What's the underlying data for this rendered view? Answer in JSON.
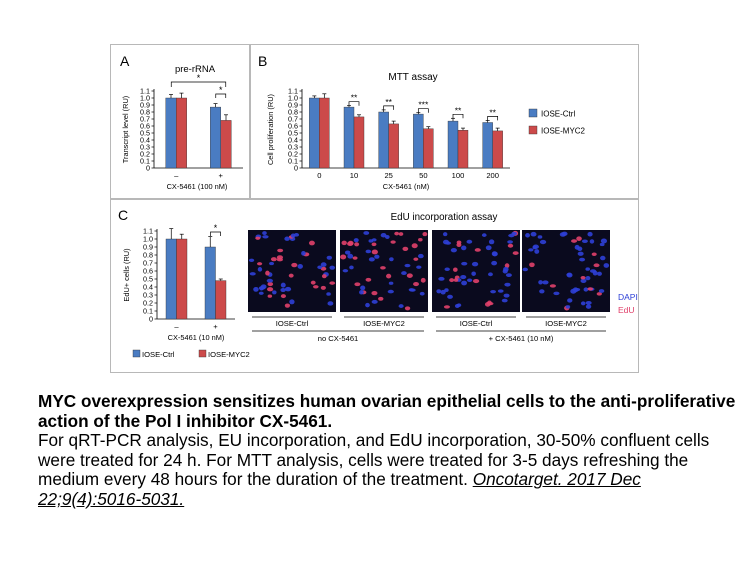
{
  "figure": {
    "panel_a": {
      "letter": "A",
      "chart_title": "pre-rRNA",
      "ylabel": "Transcript level (RU)",
      "xlabel": "CX-5461 (100 nM)",
      "ticks": [
        "0",
        "0.1",
        "0.2",
        "0.3",
        "0.4",
        "0.5",
        "0.6",
        "0.7",
        "0.8",
        "0.9",
        "1.0",
        "1.1"
      ],
      "categories": [
        "–",
        "+"
      ],
      "star_bracket_between": "*",
      "star_bracket_within": "*"
    },
    "panel_b": {
      "letter": "B",
      "chart_title": "MTT assay",
      "ylabel": "Cell proliferation (RU)",
      "xlabel": "CX-5461 (nM)",
      "ticks": [
        "0",
        "0.1",
        "0.2",
        "0.3",
        "0.4",
        "0.5",
        "0.6",
        "0.7",
        "0.8",
        "0.9",
        "1.0",
        "1.1"
      ],
      "categories": [
        "0",
        "10",
        "25",
        "50",
        "100",
        "200"
      ],
      "stars": [
        "**",
        "**",
        "***",
        "**",
        "**"
      ],
      "legend": [
        "IOSE-Ctrl",
        "IOSE-MYC2"
      ]
    },
    "panel_c": {
      "letter": "C",
      "assay_title": "EdU incorporation assay",
      "ylabel": "EdU+ cells (RU)",
      "xlabel": "CX-5461 (10 nM)",
      "ticks": [
        "0",
        "0.1",
        "0.2",
        "0.3",
        "0.4",
        "0.5",
        "0.6",
        "0.7",
        "0.8",
        "0.9",
        "1.0",
        "1.1"
      ],
      "categories": [
        "–",
        "+"
      ],
      "star": "*",
      "legend": [
        "IOSE-Ctrl",
        "IOSE-MYC2"
      ],
      "image_labels": [
        "IOSE-Ctrl",
        "IOSE-MYC2",
        "IOSE-Ctrl",
        "IOSE-MYC2"
      ],
      "group_labels": [
        "no CX-5461",
        "+ CX-5461 (10 nM)"
      ],
      "stain_labels": [
        "DAPI",
        "EdU"
      ]
    }
  },
  "colors": {
    "ctrl": "#4a7cc2",
    "myc2": "#cc4a4a",
    "dapi": "#2d3fd6",
    "edu": "#e0406a",
    "micro_bg": "#0a0a1e"
  },
  "caption": {
    "title": "MYC overexpression sensitizes human ovarian epithelial cells to the anti-proliferative action of the Pol I inhibitor CX-5461.",
    "body": "For qRT-PCR analysis, EU incorporation, and EdU incorporation, 30-50% confluent cells were treated for 24 h. For MTT analysis, cells were treated for 3-5 days refreshing the medium every 48 hours for the duration of the treatment.",
    "citation": "Oncotarget. 2017 Dec 22;9(4):5016-5031."
  },
  "chart_data": [
    {
      "type": "bar",
      "title": "pre-rRNA",
      "xlabel": "CX-5461 (100 nM)",
      "ylabel": "Transcript level (RU)",
      "ylim": [
        0,
        1.1
      ],
      "categories": [
        "–",
        "+"
      ],
      "series": [
        {
          "name": "IOSE-Ctrl",
          "values": [
            1.0,
            0.87
          ],
          "errors": [
            0.05,
            0.05
          ]
        },
        {
          "name": "IOSE-MYC2",
          "values": [
            1.0,
            0.68
          ],
          "errors": [
            0.07,
            0.08
          ]
        }
      ],
      "legend": "none"
    },
    {
      "type": "bar",
      "title": "MTT assay",
      "xlabel": "CX-5461 (nM)",
      "ylabel": "Cell proliferation (RU)",
      "ylim": [
        0,
        1.1
      ],
      "categories": [
        "0",
        "10",
        "25",
        "50",
        "100",
        "200"
      ],
      "series": [
        {
          "name": "IOSE-Ctrl",
          "values": [
            1.0,
            0.87,
            0.8,
            0.77,
            0.67,
            0.65
          ],
          "errors": [
            0.03,
            0.02,
            0.03,
            0.02,
            0.04,
            0.03
          ]
        },
        {
          "name": "IOSE-MYC2",
          "values": [
            1.0,
            0.73,
            0.63,
            0.56,
            0.54,
            0.53
          ],
          "errors": [
            0.06,
            0.03,
            0.04,
            0.03,
            0.03,
            0.04
          ]
        }
      ],
      "legend": "right"
    },
    {
      "type": "bar",
      "title": "",
      "xlabel": "CX-5461 (10 nM)",
      "ylabel": "EdU+ cells (RU)",
      "ylim": [
        0,
        1.1
      ],
      "categories": [
        "–",
        "+"
      ],
      "series": [
        {
          "name": "IOSE-Ctrl",
          "values": [
            1.0,
            0.9
          ],
          "errors": [
            0.13,
            0.13
          ]
        },
        {
          "name": "IOSE-MYC2",
          "values": [
            1.0,
            0.48
          ],
          "errors": [
            0.06,
            0.02
          ]
        }
      ],
      "legend": "bottom"
    }
  ]
}
